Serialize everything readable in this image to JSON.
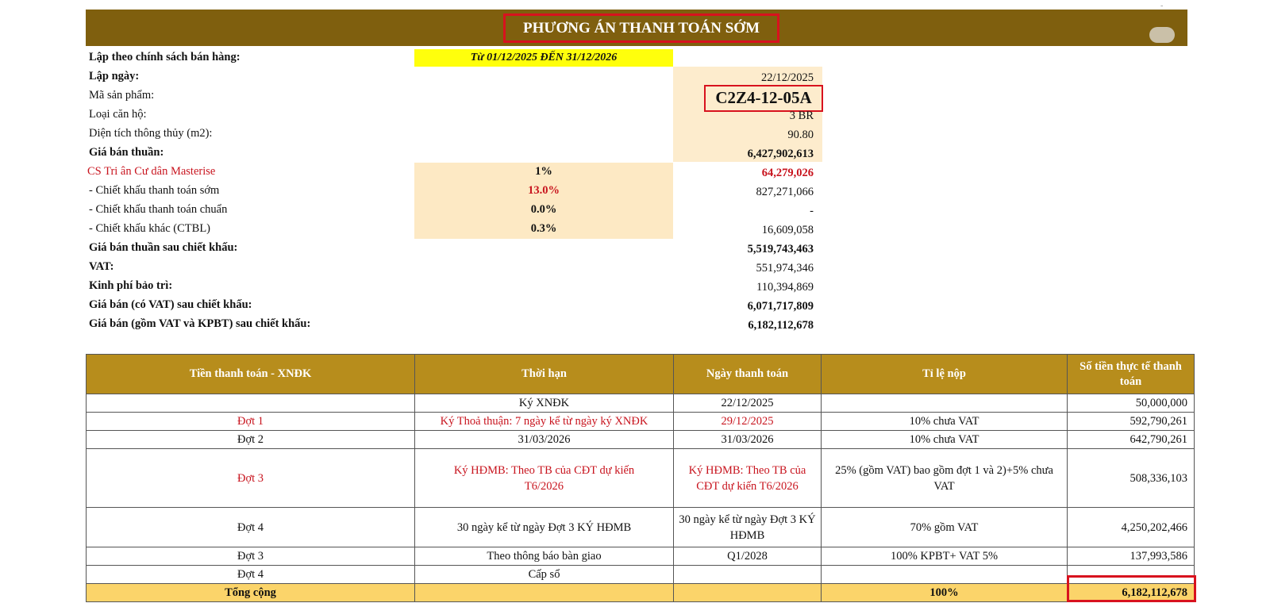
{
  "header": {
    "title": "PHƯƠNG ÁN THANH TOÁN SỚM",
    "corner_mark": "-"
  },
  "summary": {
    "policy_label": "Lập theo chính sách bán hàng:",
    "policy_value": "Từ 01/12/2025 ĐẾN 31/12/2026",
    "date_label": "Lập ngày:",
    "date_value": "22/12/2025",
    "code_label": "Mã sản phẩm:",
    "code_value": "C2Z4-12-05A",
    "type_label": "Loại căn hộ:",
    "type_value": "3 BR",
    "area_label": "Diện tích thông thủy (m2):",
    "area_value": "90.80",
    "net_price_label": "Giá bán thuần:",
    "net_price_value": "6,427,902,613",
    "cs_label": "CS Tri ân Cư dân Masterise",
    "cs_pct": "1%",
    "cs_value": "64,279,026",
    "early_label": "- Chiết khấu thanh toán sớm",
    "early_pct": "13.0%",
    "early_value": "827,271,066",
    "standard_label": "- Chiết khấu thanh toán chuẩn",
    "standard_pct": "0.0%",
    "standard_value": "-",
    "other_label": "- Chiết khấu khác (CTBL)",
    "other_pct": "0.3%",
    "other_value": "16,609,058",
    "after_disc_label": "Giá bán thuần sau chiết khấu:",
    "after_disc_value": "5,519,743,463",
    "vat_label": "VAT:",
    "vat_value": "551,974,346",
    "maint_label": "Kinh phí bảo trì:",
    "maint_value": "110,394,869",
    "with_vat_label": "Giá bán (có VAT) sau chiết khấu:",
    "with_vat_value": "6,071,717,809",
    "total_label": "Giá bán (gồm VAT và KPBT) sau chiết khấu:",
    "total_value": "6,182,112,678"
  },
  "table": {
    "headers": [
      "Tiền thanh toán - XNĐK",
      "Thời hạn",
      "Ngày thanh toán",
      "Tỉ lệ nộp",
      "Số tiền thực tế thanh toán"
    ],
    "rows": [
      [
        "",
        "Ký XNĐK",
        "22/12/2025",
        "",
        "50,000,000"
      ],
      [
        "Đợt 1",
        "Ký Thoả thuận: 7 ngày kể từ ngày ký XNĐK",
        "29/12/2025",
        "10% chưa VAT",
        "592,790,261"
      ],
      [
        "Đợt 2",
        "31/03/2026",
        "31/03/2026",
        "10% chưa VAT",
        "642,790,261"
      ],
      [
        "Đợt 3",
        "Ký HĐMB: Theo TB của CĐT dự kiến T6/2026",
        "Ký HĐMB: Theo TB của CĐT dự kiến T6/2026",
        "25% (gồm VAT) bao gồm đợt 1 và 2)+5% chưa VAT",
        "508,336,103"
      ],
      [
        "Đợt 4",
        "30 ngày kể từ ngày Đợt 3 KÝ HĐMB",
        "30 ngày kể từ ngày Đợt 3 KÝ HĐMB",
        "70% gồm VAT",
        "4,250,202,466"
      ],
      [
        "Đợt 3",
        "Theo thông báo bàn giao",
        "Q1/2028",
        "100% KPBT+ VAT 5%",
        "137,993,586"
      ],
      [
        "Đợt 4",
        "Cấp sổ",
        "",
        "",
        ""
      ]
    ],
    "total": [
      "Tổng cộng",
      "",
      "",
      "100%",
      "6,182,112,678"
    ]
  }
}
